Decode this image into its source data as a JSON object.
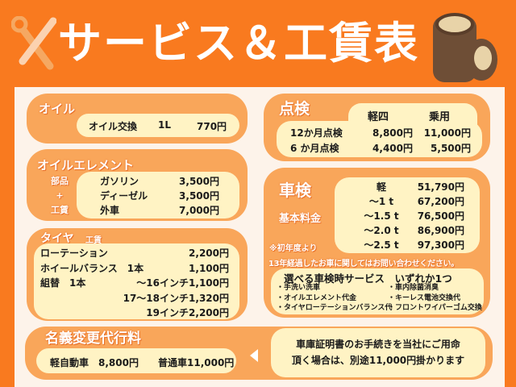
{
  "header": {
    "title": "サービス＆工賃表",
    "icons": [
      "wrench-screwdriver-icon",
      "tire-stack-icon"
    ]
  },
  "colors": {
    "background": "#f97a1f",
    "card": "#f9a65a",
    "inner": "#fff3c4",
    "panel": "#fdf3ea"
  },
  "oil": {
    "heading": "オイル",
    "item": "オイル交換",
    "qty": "1L",
    "price": "770円"
  },
  "oil_element": {
    "heading": "オイルエレメント",
    "side": [
      "部品",
      "+",
      "工賃"
    ],
    "rows": [
      {
        "label": "ガソリン",
        "price": "3,500円"
      },
      {
        "label": "ディーゼル",
        "price": "3,500円"
      },
      {
        "label": "外車",
        "price": "7,000円"
      }
    ]
  },
  "tire": {
    "heading": "タイヤ",
    "sub": "工賃",
    "rows": [
      {
        "label": "ローテーション",
        "size": "",
        "price": "2,200円"
      },
      {
        "label": "ホイールバランス　1本",
        "size": "",
        "price": "1,100円"
      },
      {
        "label": "組替　1本",
        "size": "〜16インチ",
        "price": "1,100円"
      },
      {
        "label": "",
        "size": "17〜18インチ",
        "price": "1,320円"
      },
      {
        "label": "",
        "size": "19インチ",
        "price": "2,200円"
      }
    ]
  },
  "inspection": {
    "heading": "点検",
    "cols": [
      "軽四",
      "乗用"
    ],
    "rows": [
      {
        "label": "12か月点検",
        "kei": "8,800円",
        "jo": "11,000円"
      },
      {
        "label": "6 か月点検",
        "kei": "4,400円",
        "jo": "5,500円"
      }
    ]
  },
  "shaken": {
    "heading": "車検",
    "base": "基本料金",
    "note1": "※初年度より",
    "note2": "13年経過したお車に関してはお問い合わせください。",
    "rows": [
      {
        "label": "軽",
        "price": "51,790円"
      },
      {
        "label": "〜1 t",
        "price": "67,200円"
      },
      {
        "label": "〜1.5 t",
        "price": "76,500円"
      },
      {
        "label": "〜2.0 t",
        "price": "86,900円"
      },
      {
        "label": "〜2.5 t",
        "price": "97,300円"
      }
    ],
    "service_title": "選べる車検時サービス　いずれか1つ",
    "services_left": [
      "・手洗い洗車",
      "・オイルエレメント代金",
      "・タイヤローテーションバランス代"
    ],
    "services_right": [
      "・車内除菌消臭",
      "・キーレス電池交換代",
      "・フロントワイパーゴム交換"
    ]
  },
  "transfer": {
    "heading": "名義変更代行料",
    "kei": "軽自動車　8,800円",
    "futsu": "普通車11,000円",
    "note1": "車庫証明書のお手続きを当社にご用命",
    "note2": "頂く場合は、別途11,000円掛かります"
  }
}
